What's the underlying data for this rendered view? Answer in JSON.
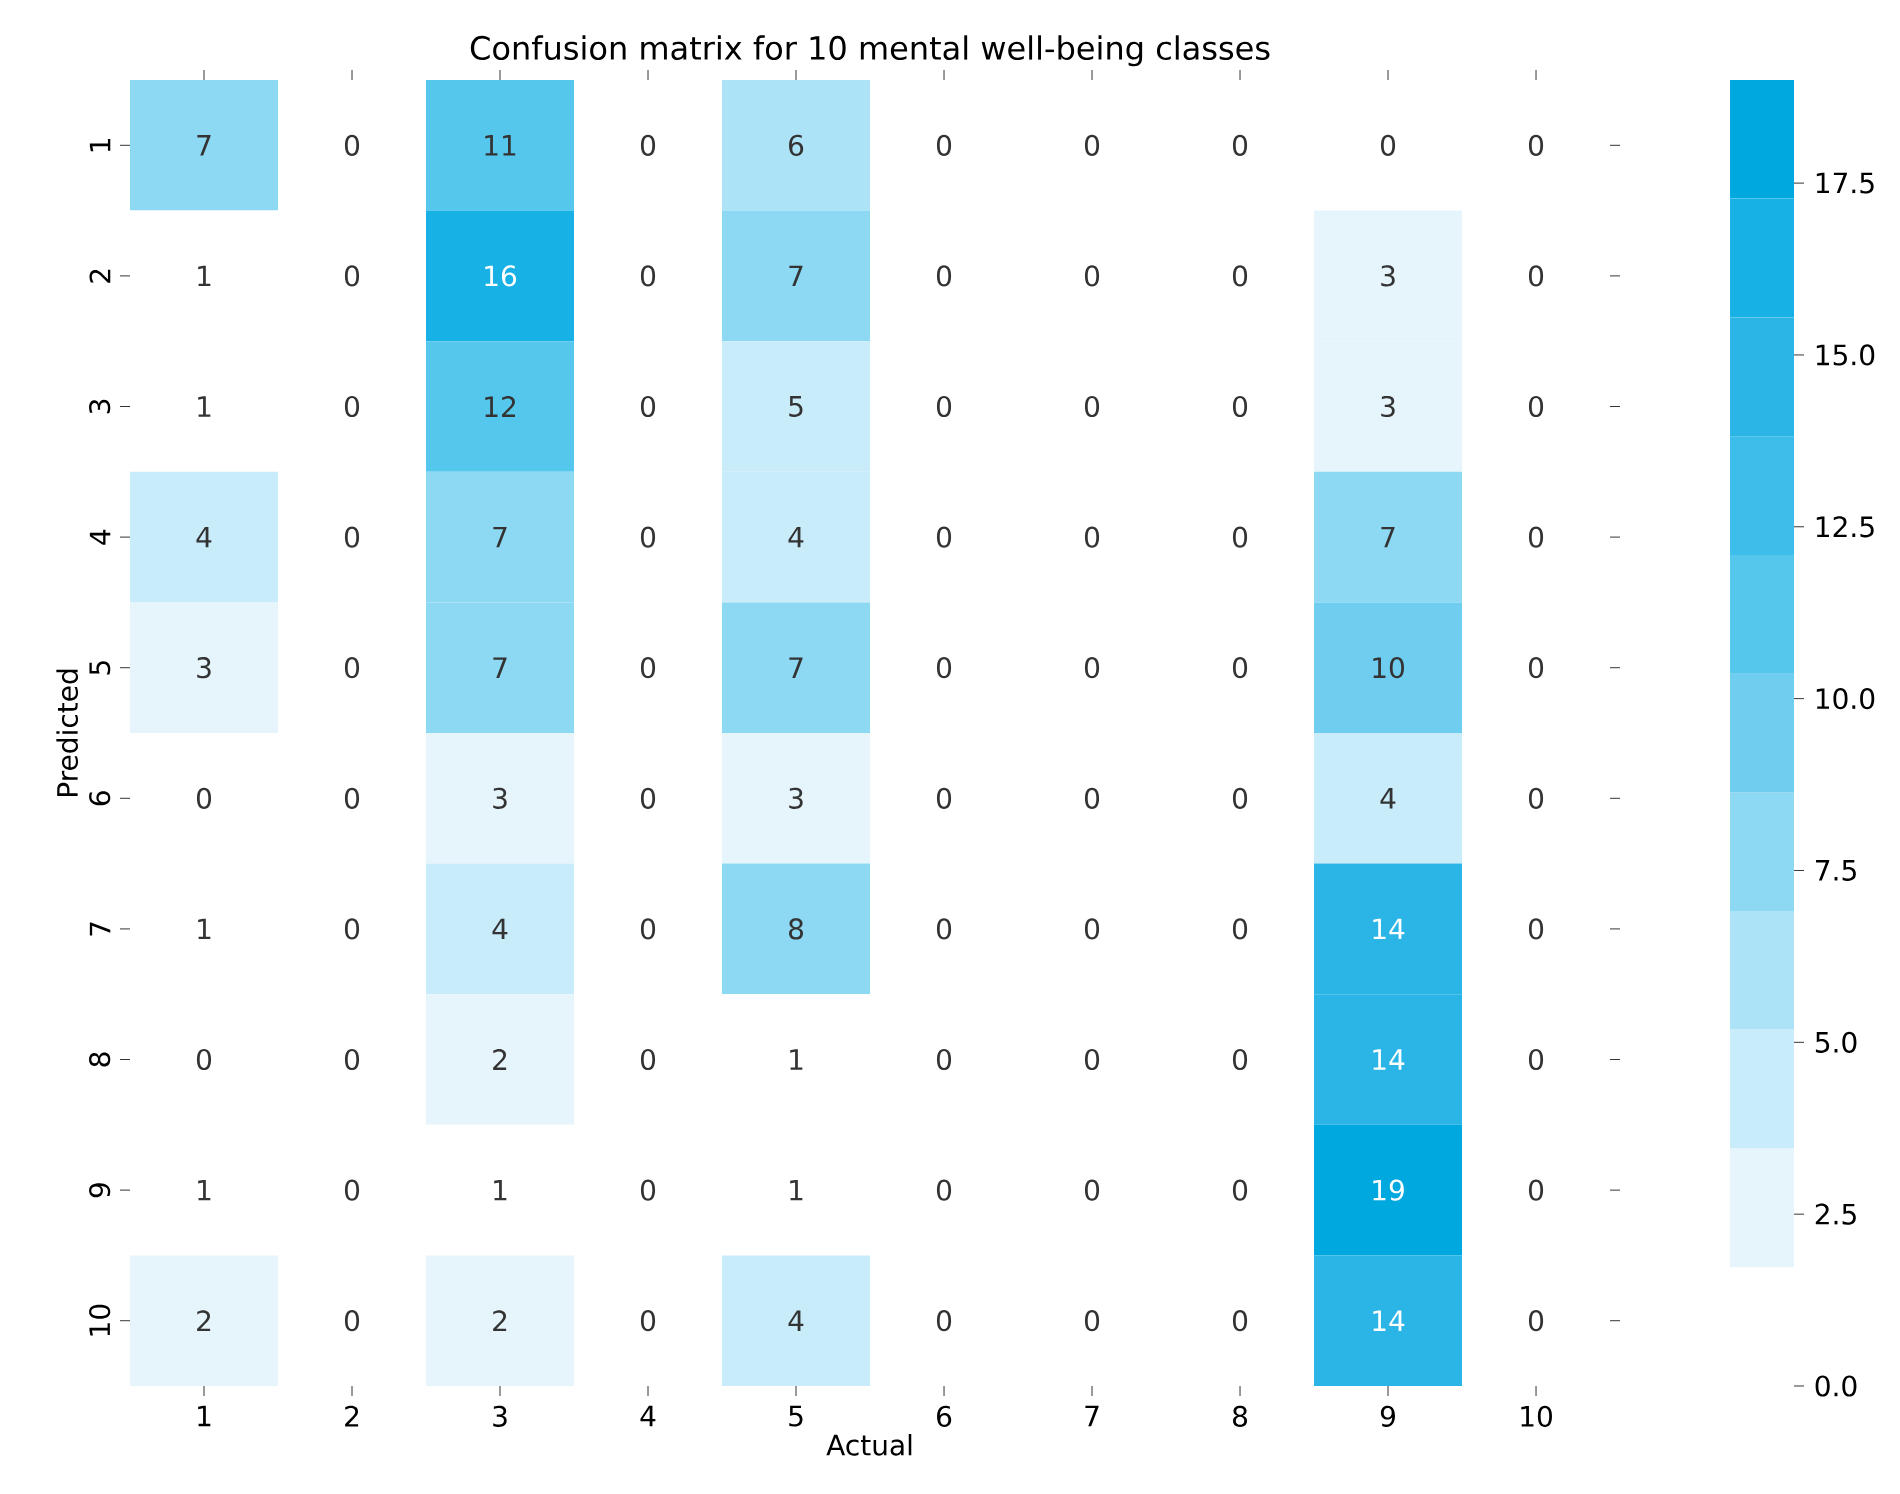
{
  "chart_data": {
    "type": "heatmap",
    "title": "Confusion matrix for 10 mental well-being classes",
    "xlabel": "Actual",
    "ylabel": "Predicted",
    "categories": [
      "1",
      "2",
      "3",
      "4",
      "5",
      "6",
      "7",
      "8",
      "9",
      "10"
    ],
    "y_categories": [
      "1",
      "2",
      "3",
      "4",
      "5",
      "6",
      "7",
      "8",
      "9",
      "10"
    ],
    "cells": [
      [
        7,
        0,
        11,
        0,
        6,
        0,
        0,
        0,
        0,
        0
      ],
      [
        1,
        0,
        16,
        0,
        7,
        0,
        0,
        0,
        3,
        0
      ],
      [
        1,
        0,
        12,
        0,
        5,
        0,
        0,
        0,
        3,
        0
      ],
      [
        4,
        0,
        7,
        0,
        4,
        0,
        0,
        0,
        7,
        0
      ],
      [
        3,
        0,
        7,
        0,
        7,
        0,
        0,
        0,
        10,
        0
      ],
      [
        0,
        0,
        3,
        0,
        3,
        0,
        0,
        0,
        4,
        0
      ],
      [
        1,
        0,
        4,
        0,
        8,
        0,
        0,
        0,
        14,
        0
      ],
      [
        0,
        0,
        2,
        0,
        1,
        0,
        0,
        0,
        14,
        0
      ],
      [
        1,
        0,
        1,
        0,
        1,
        0,
        0,
        0,
        19,
        0
      ],
      [
        2,
        0,
        2,
        0,
        4,
        0,
        0,
        0,
        14,
        0
      ]
    ],
    "data_labels": true,
    "clim": [
      0,
      19
    ],
    "cticks": [
      {
        "value": 0,
        "label": "0.0"
      },
      2.5,
      {
        "value": 5,
        "label": "5.0"
      },
      7.5,
      {
        "value": 10,
        "label": "10.0"
      },
      12.5,
      {
        "value": 15,
        "label": "15.0"
      },
      17.5
    ]
  }
}
